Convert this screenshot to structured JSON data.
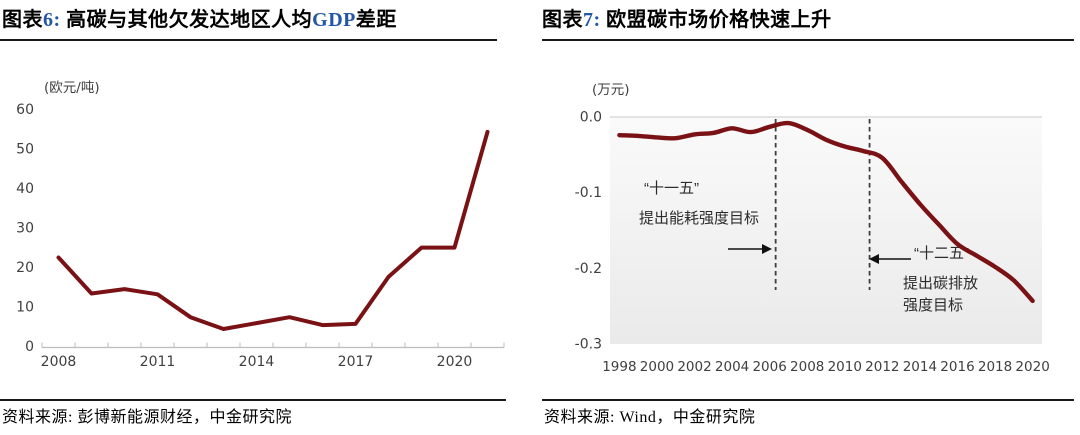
{
  "colors": {
    "line": "#7A1215",
    "accent_blue": "#2356A5",
    "axis_text": "#3F3F3F",
    "axis_line": "#BDBDBD",
    "grid": "#C9C9C9",
    "vline": "#3D3D3D",
    "arrow": "#111111",
    "plot_bg_top": "#FAFAFA",
    "plot_bg_bottom": "#EAEAEA"
  },
  "chart_data": [
    {
      "type": "line",
      "figure_label": "图表6",
      "title": "高碳与其他欠发达地区人均GDP差距",
      "title_parts": [
        {
          "text": "图表",
          "blue": false
        },
        {
          "text": "6: ",
          "blue": true
        },
        {
          "text": "高碳与其他欠发达地区人均",
          "blue": false
        },
        {
          "text": "GDP",
          "blue": true
        },
        {
          "text": "差距",
          "blue": false
        }
      ],
      "unit": "(欧元/吨)",
      "x": [
        2008,
        2009,
        2010,
        2011,
        2012,
        2013,
        2014,
        2015,
        2016,
        2017,
        2018,
        2019,
        2020,
        2021
      ],
      "values": [
        22.4,
        13.3,
        14.4,
        13.1,
        7.3,
        4.3,
        5.8,
        7.3,
        5.3,
        5.6,
        17.5,
        24.9,
        24.9,
        54.2
      ],
      "ylim": [
        0,
        60
      ],
      "yticks": [
        0,
        10,
        20,
        30,
        40,
        50,
        60
      ],
      "xtick_labels": [
        "2008",
        "2011",
        "2014",
        "2017",
        "2020"
      ],
      "grid": "off",
      "legend": "none",
      "source": "资料来源: 彭博新能源财经，中金研究院"
    },
    {
      "type": "line",
      "figure_label": "图表7",
      "title": "欧盟碳市场价格快速上升",
      "title_parts": [
        {
          "text": "图表",
          "blue": false
        },
        {
          "text": "7: ",
          "blue": true
        },
        {
          "text": "欧盟碳市场价格快速上升",
          "blue": false
        }
      ],
      "unit": "(万元)",
      "x": [
        1998,
        1999,
        2000,
        2001,
        2002,
        2003,
        2004,
        2005,
        2006,
        2007,
        2008,
        2009,
        2010,
        2011,
        2012,
        2013,
        2014,
        2015,
        2016,
        2017,
        2018,
        2019,
        2020
      ],
      "values": [
        -0.024,
        -0.025,
        -0.027,
        -0.028,
        -0.023,
        -0.021,
        -0.015,
        -0.02,
        -0.013,
        -0.008,
        -0.017,
        -0.03,
        -0.039,
        -0.045,
        -0.054,
        -0.085,
        -0.115,
        -0.142,
        -0.168,
        -0.183,
        -0.198,
        -0.216,
        -0.243
      ],
      "ylim": [
        -0.3,
        0
      ],
      "yticks": [
        0,
        -0.1,
        -0.2,
        -0.3
      ],
      "ytick_labels": [
        "0.0",
        "-0.1",
        "-0.2",
        "-0.3"
      ],
      "xtick_labels": [
        "1998",
        "2000",
        "2002",
        "2004",
        "2006",
        "2008",
        "2010",
        "2012",
        "2014",
        "2016",
        "2018",
        "2020"
      ],
      "grid": "zero-line-only",
      "legend": "none",
      "vlines": [
        2006,
        2011
      ],
      "annotations": [
        {
          "lines": [
            "“十一五”",
            "提出能耗强度目标"
          ],
          "arrow": "right",
          "at_year": 2006
        },
        {
          "lines": [
            "“十二五”",
            "提出碳排放",
            "强度目标"
          ],
          "arrow": "left",
          "at_year": 2011
        }
      ],
      "source": "资料来源: Wind，中金研究院"
    }
  ]
}
